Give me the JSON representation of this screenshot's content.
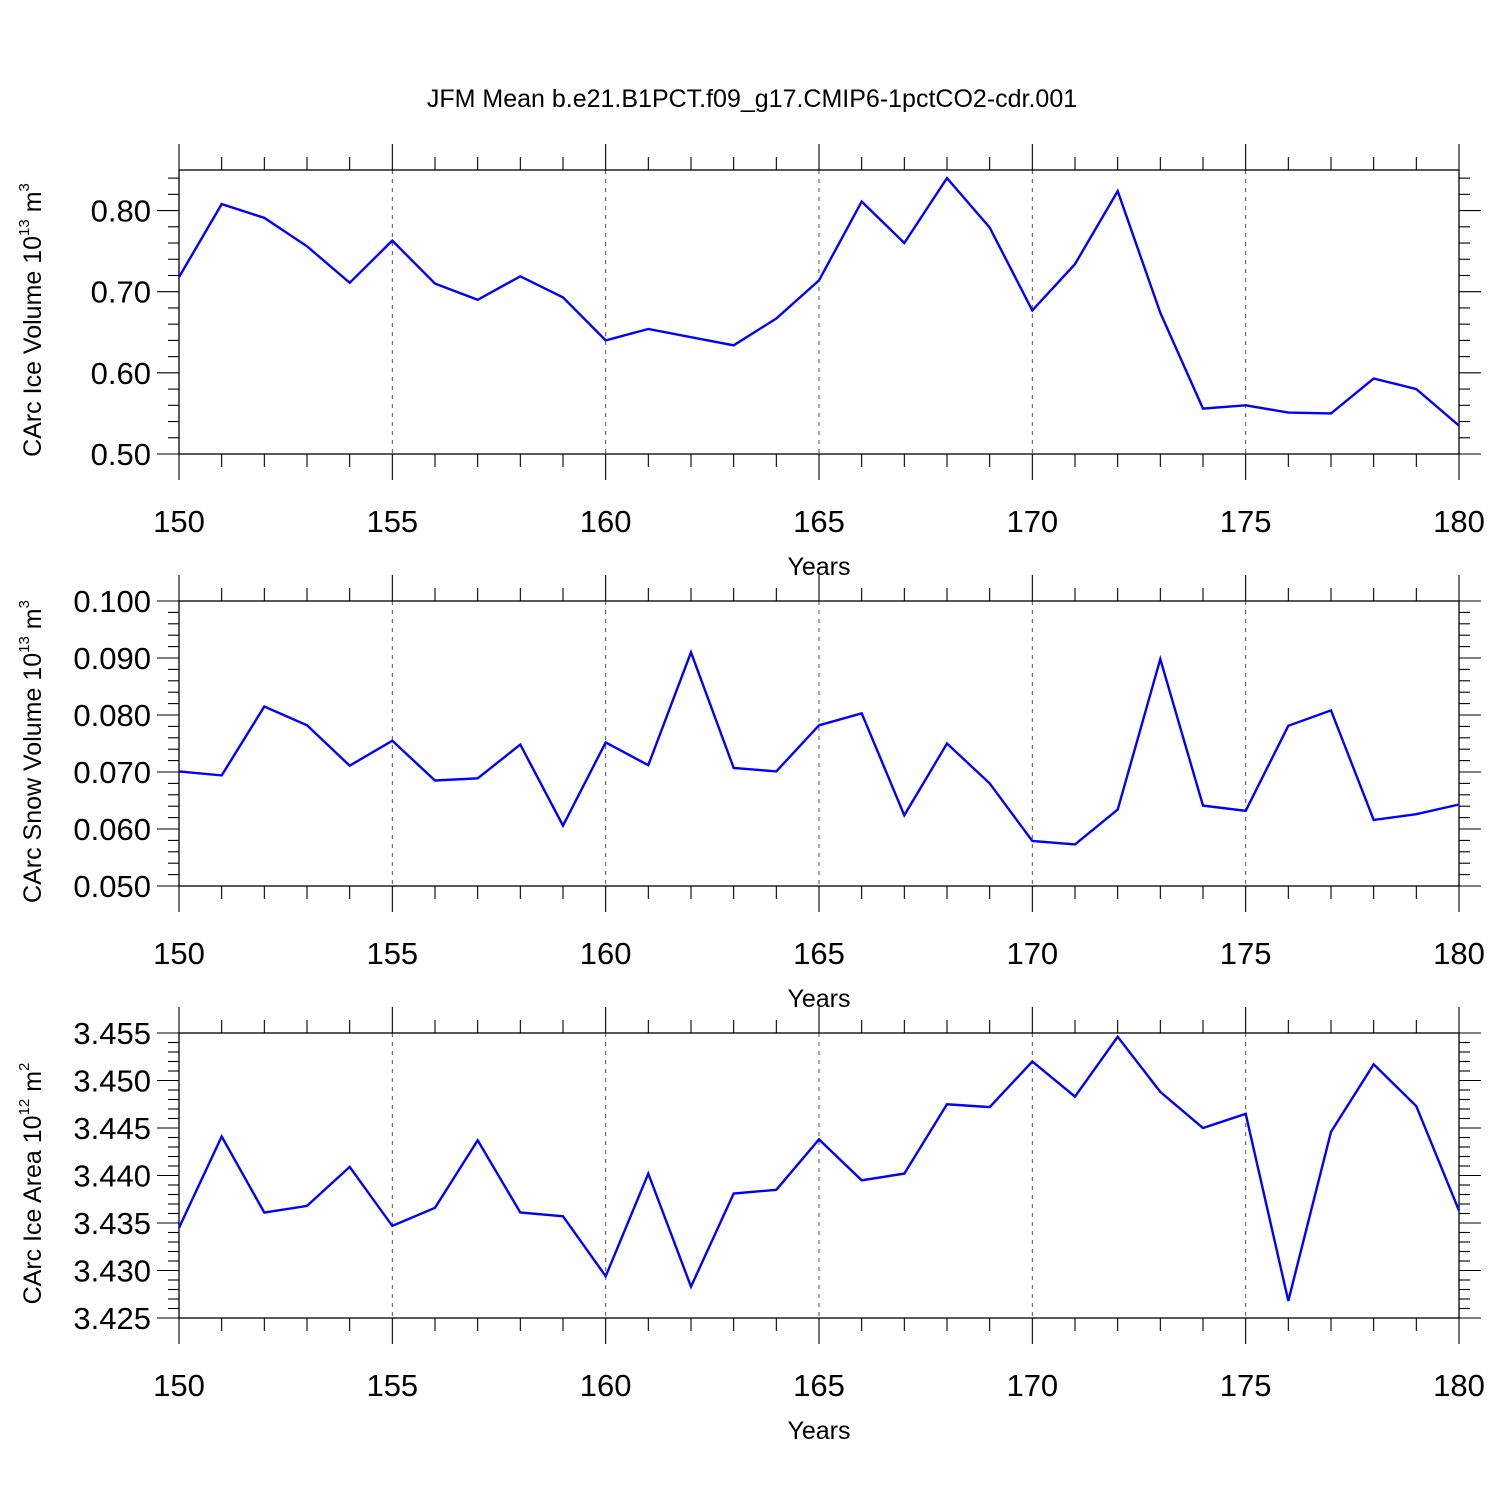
{
  "title": "JFM Mean b.e21.B1PCT.f09_g17.CMIP6-1pctCO2-cdr.001",
  "colors": {
    "series": "#0000ff",
    "axis": "#000000",
    "grid": "#555555"
  },
  "chart_data": [
    {
      "type": "line",
      "ylabel_main": "CArc Ice Volume 10",
      "ylabel_exp": "13",
      "ylabel_unit": " m",
      "ylabel_unit_exp": "3",
      "xlabel": "Years",
      "xlim": [
        150,
        180
      ],
      "ylim": [
        0.5,
        0.85
      ],
      "yticks": [
        "0.50",
        "0.60",
        "0.70",
        "0.80"
      ],
      "ytick_values": [
        0.5,
        0.6,
        0.7,
        0.8
      ],
      "xticks": [
        "150",
        "155",
        "160",
        "165",
        "170",
        "175",
        "180"
      ],
      "xtick_values": [
        150,
        155,
        160,
        165,
        170,
        175,
        180
      ],
      "grid": "vertical dashed at major x ticks",
      "x": [
        150,
        151,
        152,
        153,
        154,
        155,
        156,
        157,
        158,
        159,
        160,
        161,
        162,
        163,
        164,
        165,
        166,
        167,
        168,
        169,
        170,
        171,
        172,
        173,
        174,
        175,
        176,
        177,
        178,
        179,
        180
      ],
      "values": [
        0.718,
        0.808,
        0.791,
        0.756,
        0.711,
        0.763,
        0.71,
        0.69,
        0.719,
        0.693,
        0.64,
        0.654,
        0.644,
        0.634,
        0.667,
        0.714,
        0.811,
        0.76,
        0.84,
        0.779,
        0.677,
        0.734,
        0.824,
        0.674,
        0.556,
        0.56,
        0.551,
        0.55,
        0.593,
        0.58,
        0.535
      ]
    },
    {
      "type": "line",
      "ylabel_main": "CArc Snow Volume 10",
      "ylabel_exp": "13",
      "ylabel_unit": " m",
      "ylabel_unit_exp": "3",
      "xlabel": "Years",
      "xlim": [
        150,
        180
      ],
      "ylim": [
        0.05,
        0.1
      ],
      "yticks": [
        "0.050",
        "0.060",
        "0.070",
        "0.080",
        "0.090",
        "0.100"
      ],
      "ytick_values": [
        0.05,
        0.06,
        0.07,
        0.08,
        0.09,
        0.1
      ],
      "xticks": [
        "150",
        "155",
        "160",
        "165",
        "170",
        "175",
        "180"
      ],
      "xtick_values": [
        150,
        155,
        160,
        165,
        170,
        175,
        180
      ],
      "grid": "vertical dashed at major x ticks",
      "x": [
        150,
        151,
        152,
        153,
        154,
        155,
        156,
        157,
        158,
        159,
        160,
        161,
        162,
        163,
        164,
        165,
        166,
        167,
        168,
        169,
        170,
        171,
        172,
        173,
        174,
        175,
        176,
        177,
        178,
        179,
        180
      ],
      "values": [
        0.0701,
        0.0694,
        0.0815,
        0.0782,
        0.0711,
        0.0755,
        0.0685,
        0.0689,
        0.0748,
        0.0606,
        0.0752,
        0.0712,
        0.091,
        0.0707,
        0.0701,
        0.0782,
        0.0803,
        0.0624,
        0.075,
        0.068,
        0.0579,
        0.0573,
        0.0634,
        0.0898,
        0.0641,
        0.0632,
        0.0781,
        0.0808,
        0.0616,
        0.0626,
        0.0643
      ]
    },
    {
      "type": "line",
      "ylabel_main": "CArc Ice Area 10",
      "ylabel_exp": "12",
      "ylabel_unit": " m",
      "ylabel_unit_exp": "2",
      "xlabel": "Years",
      "xlim": [
        150,
        180
      ],
      "ylim": [
        3.425,
        3.455
      ],
      "yticks": [
        "3.425",
        "3.430",
        "3.435",
        "3.440",
        "3.445",
        "3.450",
        "3.455"
      ],
      "ytick_values": [
        3.425,
        3.43,
        3.435,
        3.44,
        3.445,
        3.45,
        3.455
      ],
      "xticks": [
        "150",
        "155",
        "160",
        "165",
        "170",
        "175",
        "180"
      ],
      "xtick_values": [
        150,
        155,
        160,
        165,
        170,
        175,
        180
      ],
      "grid": "vertical dashed at major x ticks",
      "x": [
        150,
        151,
        152,
        153,
        154,
        155,
        156,
        157,
        158,
        159,
        160,
        161,
        162,
        163,
        164,
        165,
        166,
        167,
        168,
        169,
        170,
        171,
        172,
        173,
        174,
        175,
        176,
        177,
        178,
        179,
        180
      ],
      "values": [
        3.4345,
        3.4441,
        3.4361,
        3.4368,
        3.4409,
        3.4347,
        3.4366,
        3.4437,
        3.4361,
        3.4357,
        3.4294,
        3.4402,
        3.4283,
        3.4381,
        3.4385,
        3.4438,
        3.4395,
        3.4402,
        3.4475,
        3.4472,
        3.452,
        3.4483,
        3.4546,
        3.4488,
        3.445,
        3.4465,
        3.4268,
        3.4446,
        3.4517,
        3.4473,
        3.4363
      ]
    }
  ]
}
